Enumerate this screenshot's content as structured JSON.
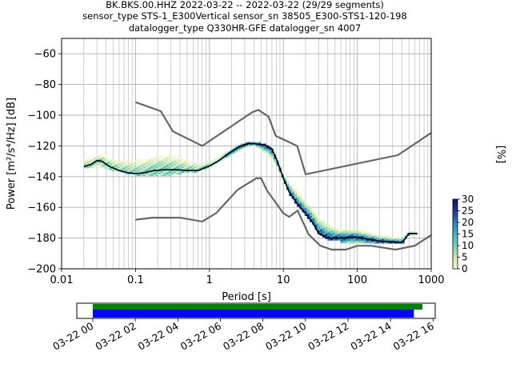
{
  "title_lines": [
    "BK.BKS.00.HHZ   2022-03-22 -- 2022-03-22  (29/29 segments)",
    "sensor_type STS-1_E300Vertical sensor_sn 38505_E300-STS1-120-198",
    "datalogger_type Q330HR-GFE datalogger_sn 4007"
  ],
  "chart_data": {
    "type": "heatmap",
    "xlabel": "Period [s]",
    "ylabel": "Power [m²/s⁴/Hz] [dB]",
    "xscale": "log",
    "xlim": [
      0.01,
      1000
    ],
    "ylim": [
      -200,
      -50
    ],
    "xticks": [
      0.01,
      0.1,
      1,
      10,
      100,
      1000
    ],
    "xtick_labels": [
      "0.01",
      "0.1",
      "1",
      "10",
      "100",
      "1000"
    ],
    "yticks": [
      -60,
      -80,
      -100,
      -120,
      -140,
      -160,
      -180,
      -200
    ],
    "ytick_labels": [
      "−60",
      "−80",
      "−100",
      "−120",
      "−140",
      "−160",
      "−180",
      "−200"
    ],
    "grid": true,
    "colorbar": {
      "label": "[%]",
      "range": [
        0,
        30
      ],
      "ticks": [
        0,
        5,
        10,
        15,
        20,
        25,
        30
      ],
      "tick_labels": [
        "0",
        "5",
        "10",
        "15",
        "20",
        "25",
        "30"
      ],
      "colormap_stops": [
        "#ffffcc",
        "#c7e9b4",
        "#7fcdbb",
        "#41b6c4",
        "#2c7fb8",
        "#253494",
        "#081d58"
      ]
    },
    "new_high_noise_model": {
      "period": [
        0.1,
        0.22,
        0.32,
        0.8,
        3.8,
        4.6,
        6.3,
        7.9,
        15.4,
        20,
        354.8,
        1000
      ],
      "power": [
        -91.5,
        -97.4,
        -110.5,
        -120,
        -98,
        -96.5,
        -101,
        -113.5,
        -120,
        -138.5,
        -126,
        -111.5
      ]
    },
    "new_low_noise_model": {
      "period": [
        0.1,
        0.17,
        0.4,
        0.8,
        1.24,
        2.4,
        4.3,
        5,
        6,
        10,
        12,
        15.6,
        21.9,
        31.6,
        45,
        70,
        101,
        154,
        328,
        600,
        1000
      ],
      "power": [
        -168,
        -166.7,
        -166.7,
        -169.2,
        -163.7,
        -148.6,
        -141.1,
        -141.1,
        -149,
        -163.8,
        -166.2,
        -162.1,
        -177.5,
        -185,
        -187.5,
        -187.5,
        -185,
        -185,
        -187.5,
        -185,
        -178
      ]
    },
    "mean_psd": {
      "period": [
        0.02,
        0.025,
        0.03,
        0.035,
        0.045,
        0.06,
        0.08,
        0.1,
        0.13,
        0.18,
        0.25,
        0.35,
        0.5,
        0.7,
        1,
        1.3,
        1.8,
        2.5,
        3.3,
        4,
        5,
        6,
        7,
        8,
        10,
        12,
        15,
        20,
        25,
        30,
        40,
        60,
        80,
        100,
        150,
        200,
        300,
        380,
        420,
        500,
        650
      ],
      "power": [
        -133.5,
        -132,
        -129.5,
        -130,
        -133.5,
        -136,
        -137.5,
        -138,
        -137.5,
        -136,
        -135.5,
        -135.5,
        -136,
        -136,
        -133,
        -130,
        -125,
        -120.5,
        -118.5,
        -118.5,
        -119,
        -120,
        -122,
        -128,
        -141,
        -150,
        -157,
        -164,
        -170,
        -177,
        -180,
        -180,
        -179.5,
        -179.5,
        -181,
        -182,
        -182.5,
        -183,
        -182,
        -177,
        -177
      ]
    },
    "histogram_spread_db": [
      {
        "period": 0.03,
        "low": -134,
        "high": -126
      },
      {
        "period": 0.1,
        "low": -139,
        "high": -121
      },
      {
        "period": 0.3,
        "low": -139,
        "high": -119
      },
      {
        "period": 1,
        "low": -135,
        "high": -130
      },
      {
        "period": 4,
        "low": -120,
        "high": -117
      },
      {
        "period": 60,
        "low": -183,
        "high": -172
      },
      {
        "period": 100,
        "low": -183,
        "high": -174
      },
      {
        "period": 300,
        "low": -184,
        "high": -178
      },
      {
        "period": 600,
        "low": -178,
        "high": -176
      }
    ]
  },
  "timeline": {
    "tick_labels": [
      "03-22 00",
      "03-22 02",
      "03-22 04",
      "03-22 06",
      "03-22 08",
      "03-22 10",
      "03-22 12",
      "03-22 14",
      "03-22 16"
    ],
    "tick_hours": [
      0,
      2,
      4,
      6,
      8,
      10,
      12,
      14,
      16
    ],
    "xlim_hours": [
      -0.75,
      16.1
    ],
    "data_available": {
      "start_hour": 0,
      "end_hour": 15.5,
      "color": "#008000"
    },
    "psd_segments": {
      "start_hour": 0,
      "end_hour": 15.1,
      "color": "#0000ff"
    }
  }
}
